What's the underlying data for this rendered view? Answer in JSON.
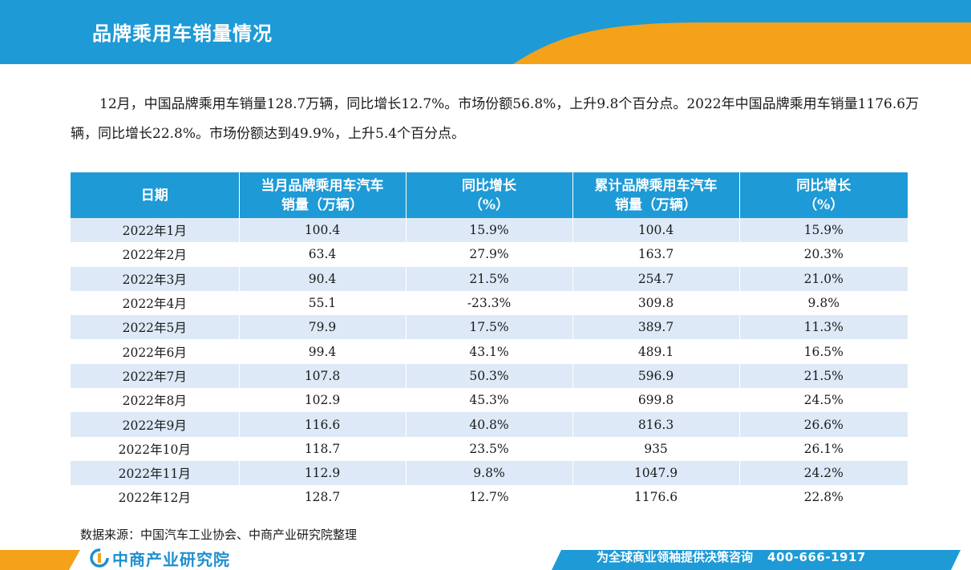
{
  "header": {
    "title": "品牌乘用车销量情况"
  },
  "intro": {
    "text": "12月，中国品牌乘用车销量128.7万辆，同比增长12.7%。市场份额56.8%，上升9.8个百分点。2022年中国品牌乘用车销量1176.6万辆，同比增长22.8%。市场份额达到49.9%，上升5.4个百分点。"
  },
  "table": {
    "headers": {
      "date": "日期",
      "monthly_sales_line1": "当月品牌乘用车汽车",
      "monthly_sales_line2": "销量（万辆）",
      "monthly_yoy_line1": "同比增长",
      "monthly_yoy_line2": "（%）",
      "cumulative_sales_line1": "累计品牌乘用车汽车",
      "cumulative_sales_line2": "销量（万辆）",
      "cumulative_yoy_line1": "同比增长",
      "cumulative_yoy_line2": "（%）"
    },
    "rows": [
      {
        "date": "2022年1月",
        "monthly": "100.4",
        "monthly_yoy": "15.9%",
        "cumulative": "100.4",
        "cumulative_yoy": "15.9%"
      },
      {
        "date": "2022年2月",
        "monthly": "63.4",
        "monthly_yoy": "27.9%",
        "cumulative": "163.7",
        "cumulative_yoy": "20.3%"
      },
      {
        "date": "2022年3月",
        "monthly": "90.4",
        "monthly_yoy": "21.5%",
        "cumulative": "254.7",
        "cumulative_yoy": "21.0%"
      },
      {
        "date": "2022年4月",
        "monthly": "55.1",
        "monthly_yoy": "-23.3%",
        "cumulative": "309.8",
        "cumulative_yoy": "9.8%"
      },
      {
        "date": "2022年5月",
        "monthly": "79.9",
        "monthly_yoy": "17.5%",
        "cumulative": "389.7",
        "cumulative_yoy": "11.3%"
      },
      {
        "date": "2022年6月",
        "monthly": "99.4",
        "monthly_yoy": "43.1%",
        "cumulative": "489.1",
        "cumulative_yoy": "16.5%"
      },
      {
        "date": "2022年7月",
        "monthly": "107.8",
        "monthly_yoy": "50.3%",
        "cumulative": "596.9",
        "cumulative_yoy": "21.5%"
      },
      {
        "date": "2022年8月",
        "monthly": "102.9",
        "monthly_yoy": "45.3%",
        "cumulative": "699.8",
        "cumulative_yoy": "24.5%"
      },
      {
        "date": "2022年9月",
        "monthly": "116.6",
        "monthly_yoy": "40.8%",
        "cumulative": "816.3",
        "cumulative_yoy": "26.6%"
      },
      {
        "date": "2022年10月",
        "monthly": "118.7",
        "monthly_yoy": "23.5%",
        "cumulative": "935",
        "cumulative_yoy": "26.1%"
      },
      {
        "date": "2022年11月",
        "monthly": "112.9",
        "monthly_yoy": "9.8%",
        "cumulative": "1047.9",
        "cumulative_yoy": "24.2%"
      },
      {
        "date": "2022年12月",
        "monthly": "128.7",
        "monthly_yoy": "12.7%",
        "cumulative": "1176.6",
        "cumulative_yoy": "22.8%"
      }
    ]
  },
  "source": {
    "text": "数据来源：中国汽车工业协会、中商产业研究院整理"
  },
  "footer": {
    "logo_text": "中商产业研究院",
    "slogan": "为全球商业领袖提供决策咨询",
    "phone": "400-666-1917"
  },
  "colors": {
    "header_blue": "#1e9ad6",
    "accent_orange": "#f4a21a",
    "row_stripe": "#dde9f6"
  }
}
